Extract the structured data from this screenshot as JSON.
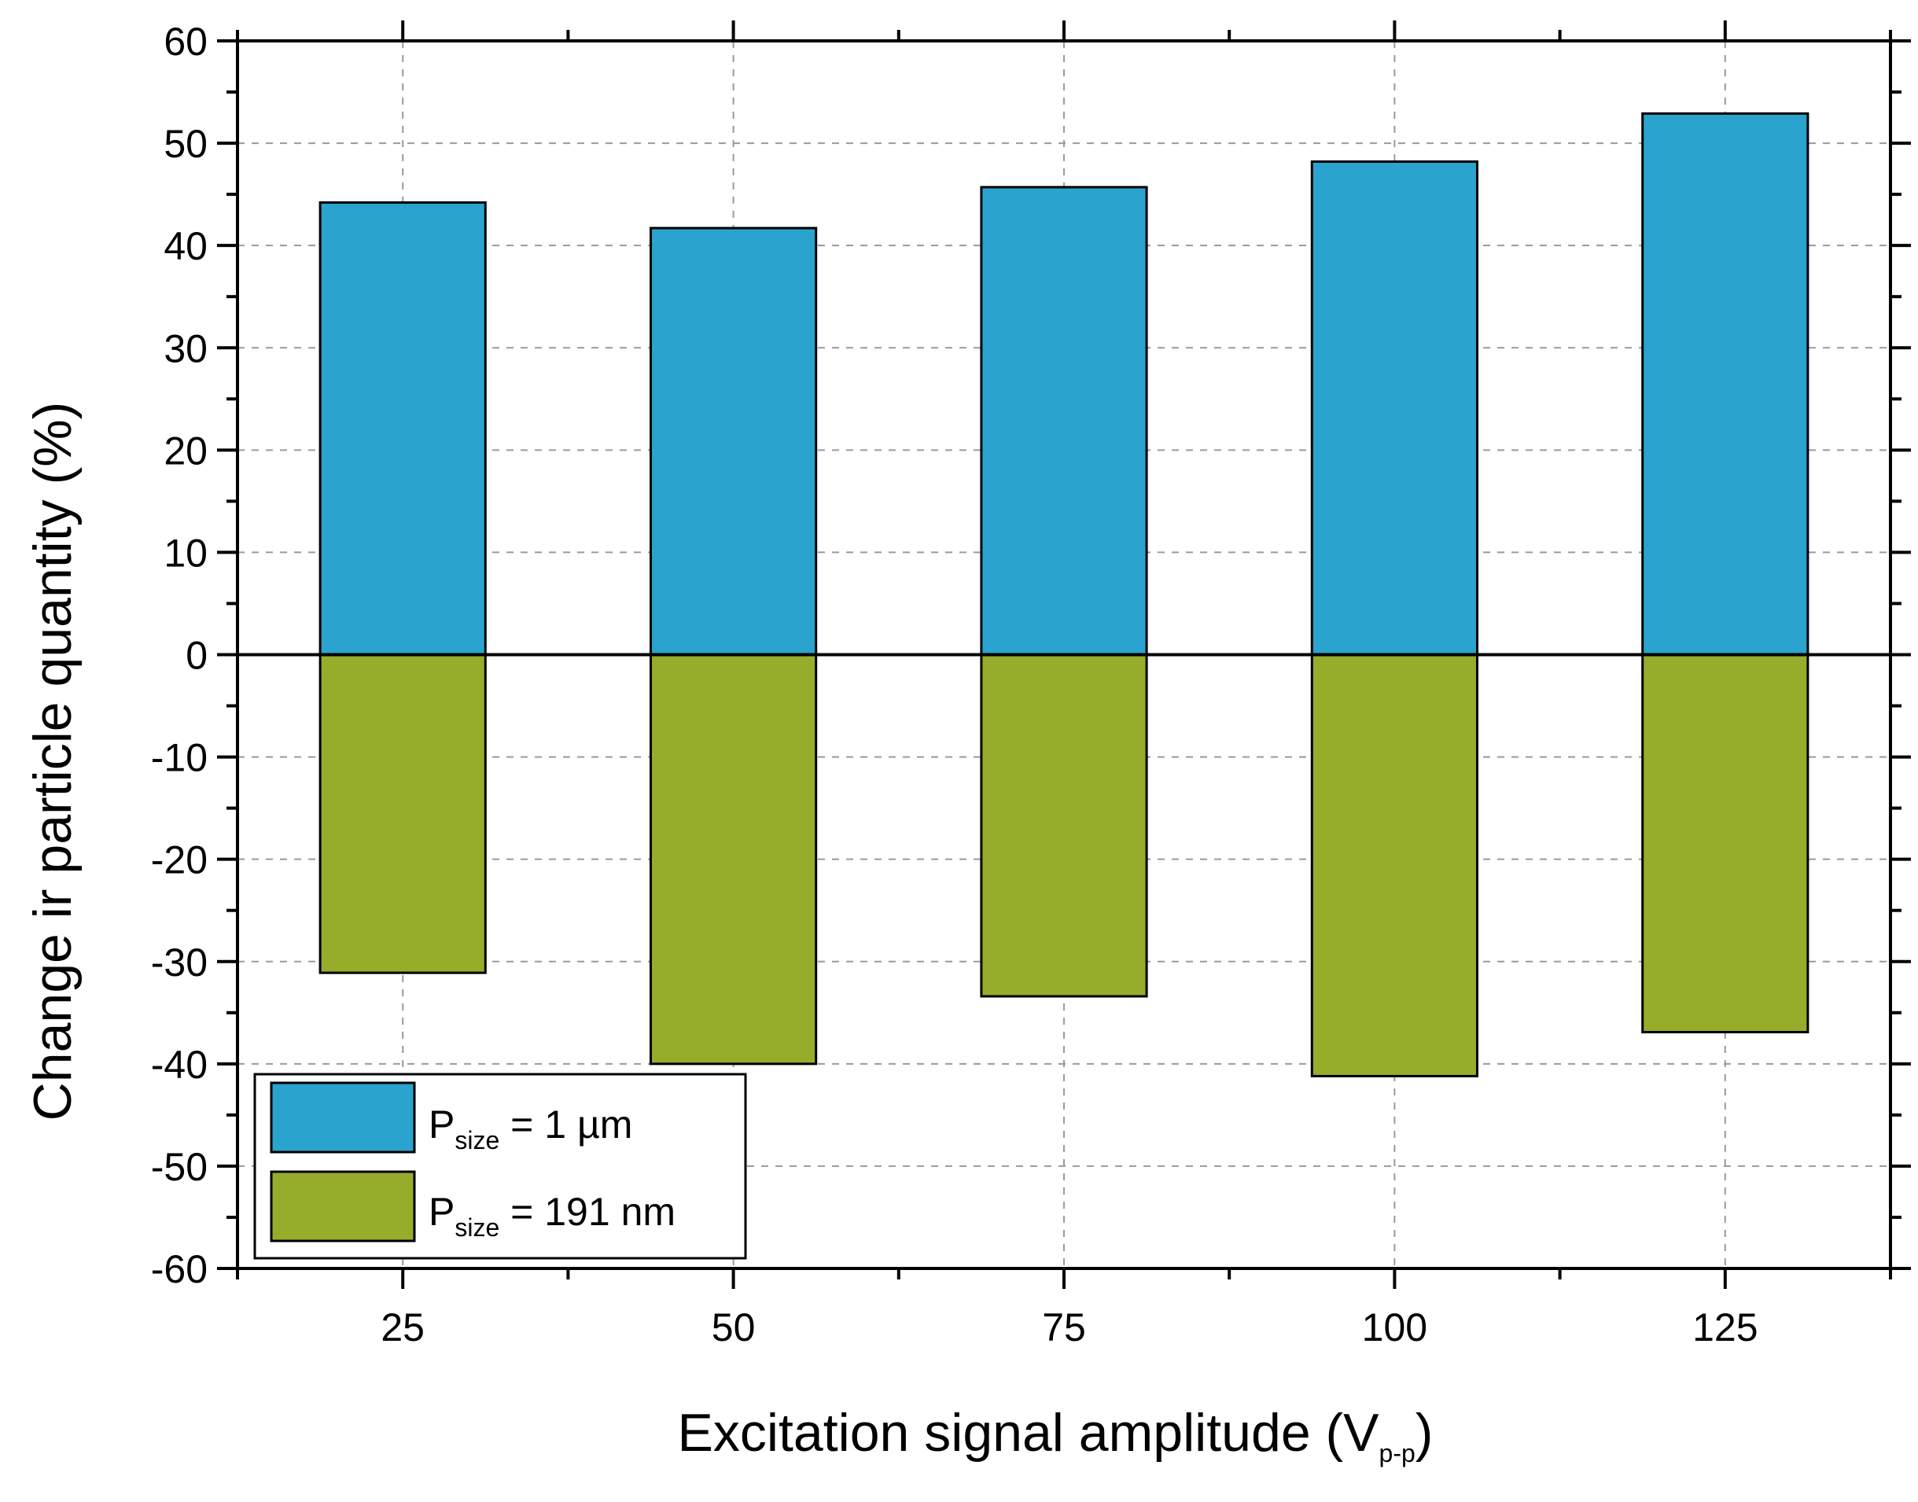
{
  "chart_data": {
    "type": "bar",
    "title": "",
    "xlabel": {
      "main": "Excitation signal amplitude (V",
      "sub": "p-p",
      "close": ")"
    },
    "ylabel": "Change ir particle quantity (%)",
    "categories": [
      "25",
      "50",
      "75",
      "100",
      "125"
    ],
    "x_values": [
      25,
      50,
      75,
      100,
      125
    ],
    "xlim": [
      12.5,
      137.5
    ],
    "ylim": [
      -60,
      60
    ],
    "yticks": [
      -60,
      -50,
      -40,
      -30,
      -20,
      -10,
      0,
      10,
      20,
      30,
      40,
      50,
      60
    ],
    "grid": true,
    "legend_position": "bottom-left",
    "series": [
      {
        "name": "P_size = 1 µm",
        "legend": {
          "p": "P",
          "sub": "size",
          "rest": " = 1 µm"
        },
        "color": "#2AA3CE",
        "values": [
          44.2,
          41.7,
          45.7,
          48.2,
          52.9
        ]
      },
      {
        "name": "P_size = 191 nm",
        "legend": {
          "p": "P",
          "sub": "size",
          "rest": " = 191 nm"
        },
        "color": "#95AD2B",
        "values": [
          -31.1,
          -40.0,
          -33.4,
          -41.2,
          -36.9
        ]
      }
    ]
  }
}
